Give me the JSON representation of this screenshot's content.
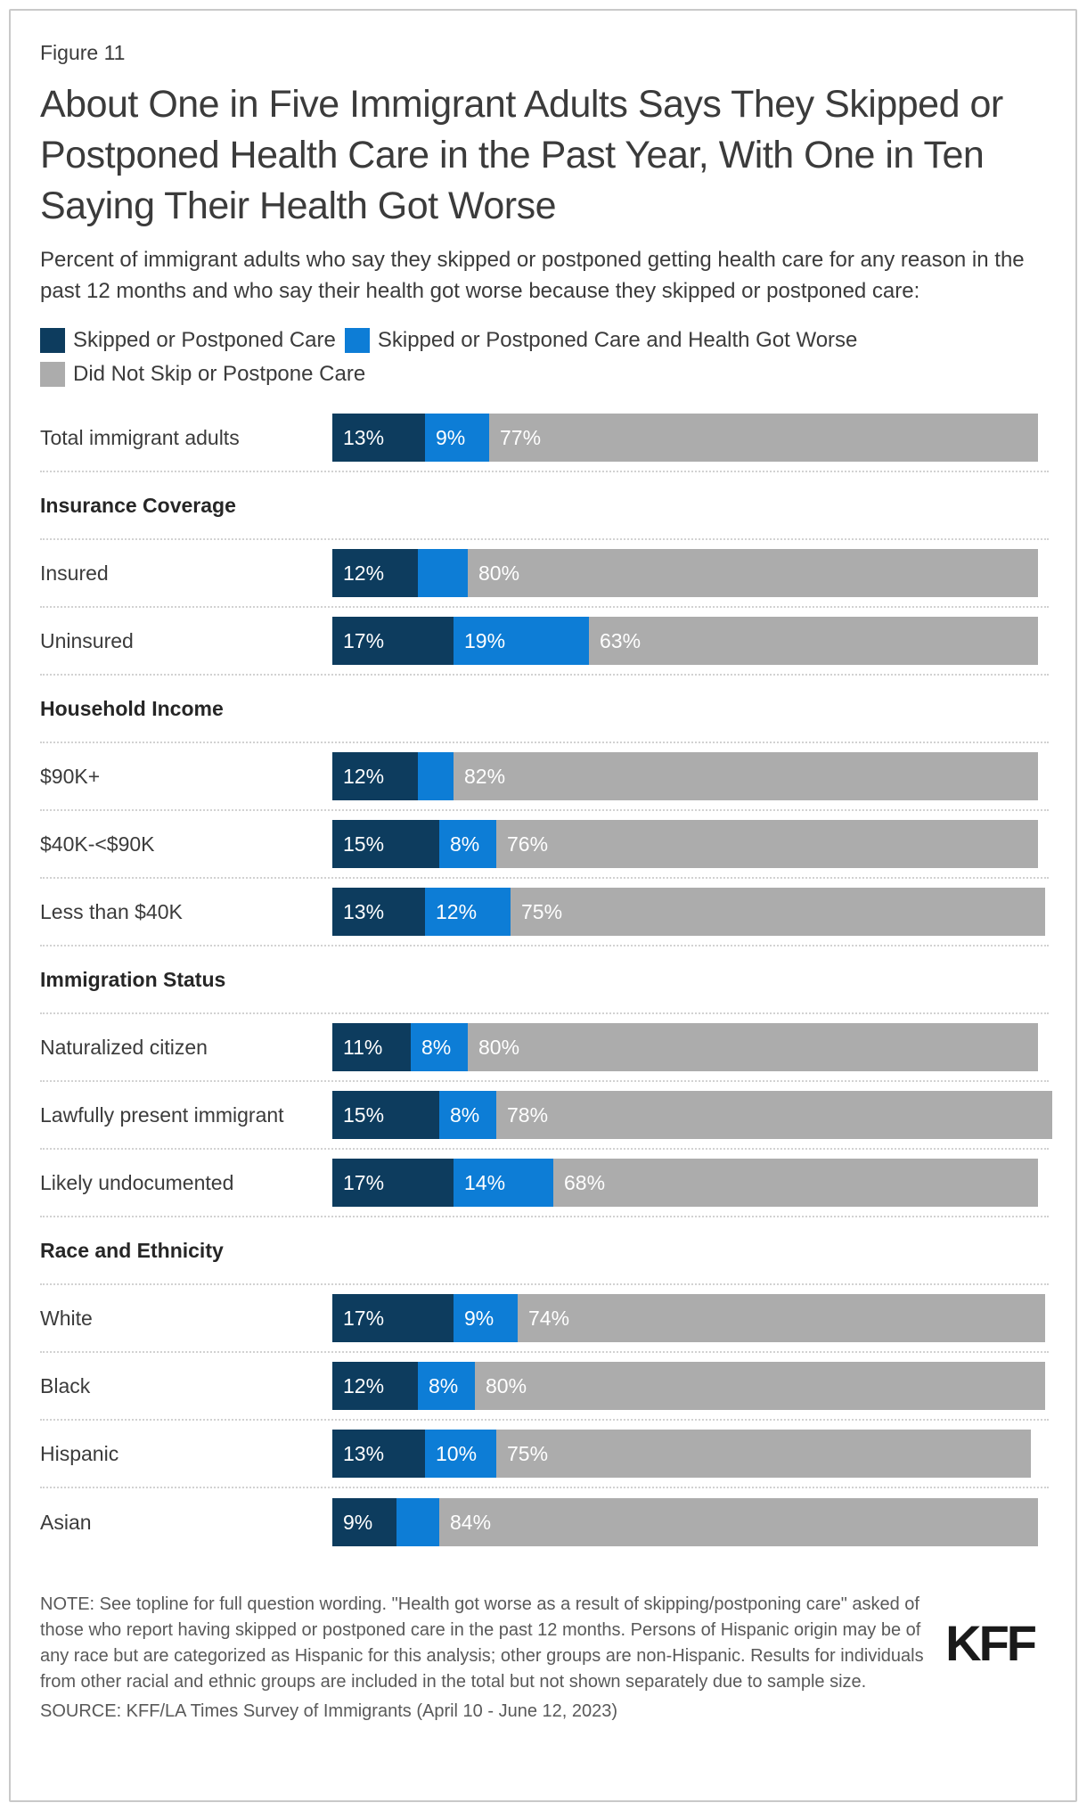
{
  "figure_label": "Figure 11",
  "title": "About One in Five Immigrant Adults Says They Skipped or Postponed Health Care in the Past Year, With One in Ten Saying Their Health Got Worse",
  "subtitle": "Percent of immigrant adults who say they skipped or postponed getting health care for any reason in the past 12 months and who say their health got worse because they skipped or postponed care:",
  "colors": {
    "skipped": "#0d3c5e",
    "skipped_health_worse": "#0d7dd6",
    "did_not_skip": "#acacac"
  },
  "legend": [
    {
      "label": "Skipped or Postponed Care",
      "color": "#0d3c5e"
    },
    {
      "label": "Skipped or Postponed Care and Health Got Worse",
      "color": "#0d7dd6"
    },
    {
      "label": "Did Not Skip or Postpone Care",
      "color": "#acacac"
    }
  ],
  "chart_data": {
    "type": "bar",
    "orientation": "horizontal-stacked",
    "unit": "percent",
    "axis_range": [
      0,
      100
    ],
    "grid": false,
    "legend_position": "top",
    "series_names": [
      "Skipped or Postponed Care",
      "Skipped or Postponed Care and Health Got Worse",
      "Did Not Skip or Postpone Care"
    ],
    "rows": [
      {
        "kind": "bar",
        "label": "Total immigrant adults",
        "values": [
          13,
          9,
          77
        ],
        "display_labels": [
          "13%",
          "9%",
          "77%"
        ]
      },
      {
        "kind": "header",
        "label": "Insurance Coverage"
      },
      {
        "kind": "bar",
        "label": "Insured",
        "values": [
          12,
          7,
          80
        ],
        "display_labels": [
          "12%",
          "",
          "80%"
        ]
      },
      {
        "kind": "bar",
        "label": "Uninsured",
        "values": [
          17,
          19,
          63
        ],
        "display_labels": [
          "17%",
          "19%",
          "63%"
        ]
      },
      {
        "kind": "header",
        "label": "Household Income"
      },
      {
        "kind": "bar",
        "label": "$90K+",
        "values": [
          12,
          5,
          82
        ],
        "display_labels": [
          "12%",
          "",
          "82%"
        ]
      },
      {
        "kind": "bar",
        "label": "$40K-<$90K",
        "values": [
          15,
          8,
          76
        ],
        "display_labels": [
          "15%",
          "8%",
          "76%"
        ]
      },
      {
        "kind": "bar",
        "label": "Less than $40K",
        "values": [
          13,
          12,
          75
        ],
        "display_labels": [
          "13%",
          "12%",
          "75%"
        ]
      },
      {
        "kind": "header",
        "label": "Immigration Status"
      },
      {
        "kind": "bar",
        "label": "Naturalized citizen",
        "values": [
          11,
          8,
          80
        ],
        "display_labels": [
          "11%",
          "8%",
          "80%"
        ]
      },
      {
        "kind": "bar",
        "label": "Lawfully present immigrant",
        "values": [
          15,
          8,
          78
        ],
        "display_labels": [
          "15%",
          "8%",
          "78%"
        ]
      },
      {
        "kind": "bar",
        "label": "Likely undocumented",
        "values": [
          17,
          14,
          68
        ],
        "display_labels": [
          "17%",
          "14%",
          "68%"
        ]
      },
      {
        "kind": "header",
        "label": "Race and Ethnicity"
      },
      {
        "kind": "bar",
        "label": "White",
        "values": [
          17,
          9,
          74
        ],
        "display_labels": [
          "17%",
          "9%",
          "74%"
        ]
      },
      {
        "kind": "bar",
        "label": "Black",
        "values": [
          12,
          8,
          80
        ],
        "display_labels": [
          "12%",
          "8%",
          "80%"
        ]
      },
      {
        "kind": "bar",
        "label": "Hispanic",
        "values": [
          13,
          10,
          75
        ],
        "display_labels": [
          "13%",
          "10%",
          "75%"
        ]
      },
      {
        "kind": "bar",
        "label": "Asian",
        "values": [
          9,
          6,
          84
        ],
        "display_labels": [
          "9%",
          "",
          "84%"
        ]
      }
    ]
  },
  "note": "NOTE: See topline for full question wording. \"Health got worse as a result of skipping/postponing care\" asked of those who report having skipped or postponed care in the past 12 months. Persons of Hispanic origin may be of any race but are categorized as Hispanic for this analysis; other groups are non-Hispanic. Results for individuals from other racial and ethnic groups are included in the total but not shown separately due to sample size.",
  "source": "SOURCE: KFF/LA Times Survey of Immigrants (April 10 - June 12, 2023)",
  "logo_text": "KFF"
}
